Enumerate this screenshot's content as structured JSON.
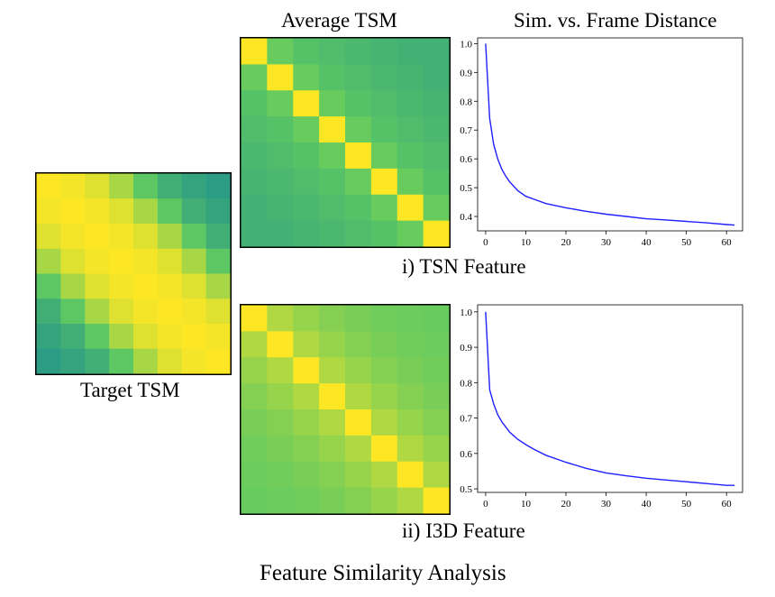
{
  "labels": {
    "avg_tsm": "Average TSM",
    "sim_vs_dist": "Sim. vs. Frame Distance",
    "tsn_caption": "i) TSN Feature",
    "i3d_caption": "ii) I3D Feature",
    "target_caption": "Target TSM",
    "figure_title": "Feature Similarity Analysis"
  },
  "colors": {
    "line": "#2020ff",
    "diag": "#fde725",
    "heat_frame": "#000000"
  },
  "chart_data": [
    {
      "type": "heatmap",
      "title": "Target TSM",
      "size": 8,
      "values": [
        [
          1.0,
          0.98,
          0.93,
          0.8,
          0.62,
          0.45,
          0.38,
          0.33
        ],
        [
          0.98,
          1.0,
          0.98,
          0.93,
          0.8,
          0.62,
          0.45,
          0.38
        ],
        [
          0.93,
          0.98,
          1.0,
          0.98,
          0.93,
          0.8,
          0.62,
          0.45
        ],
        [
          0.8,
          0.93,
          0.98,
          1.0,
          0.98,
          0.93,
          0.8,
          0.62
        ],
        [
          0.62,
          0.8,
          0.93,
          0.98,
          1.0,
          0.98,
          0.93,
          0.8
        ],
        [
          0.45,
          0.62,
          0.8,
          0.93,
          0.98,
          1.0,
          0.98,
          0.93
        ],
        [
          0.38,
          0.45,
          0.62,
          0.8,
          0.93,
          0.98,
          1.0,
          0.98
        ],
        [
          0.33,
          0.38,
          0.45,
          0.62,
          0.8,
          0.93,
          0.98,
          1.0
        ]
      ]
    },
    {
      "type": "heatmap",
      "title": "Average TSM (TSN)",
      "size": 8,
      "values": [
        [
          1.0,
          0.65,
          0.58,
          0.54,
          0.51,
          0.49,
          0.47,
          0.46
        ],
        [
          0.65,
          1.0,
          0.65,
          0.58,
          0.54,
          0.51,
          0.49,
          0.47
        ],
        [
          0.58,
          0.65,
          1.0,
          0.65,
          0.58,
          0.54,
          0.51,
          0.49
        ],
        [
          0.54,
          0.58,
          0.65,
          1.0,
          0.65,
          0.58,
          0.54,
          0.51
        ],
        [
          0.51,
          0.54,
          0.58,
          0.65,
          1.0,
          0.65,
          0.58,
          0.54
        ],
        [
          0.49,
          0.51,
          0.54,
          0.58,
          0.65,
          1.0,
          0.65,
          0.58
        ],
        [
          0.47,
          0.49,
          0.51,
          0.54,
          0.58,
          0.65,
          1.0,
          0.65
        ],
        [
          0.46,
          0.47,
          0.49,
          0.51,
          0.54,
          0.58,
          0.65,
          1.0
        ]
      ]
    },
    {
      "type": "line",
      "title": "Sim. vs. Frame Distance (TSN)",
      "x": [
        0,
        1,
        2,
        3,
        4,
        5,
        6,
        7,
        8,
        10,
        12,
        15,
        20,
        25,
        30,
        35,
        40,
        45,
        50,
        55,
        60,
        62
      ],
      "y": [
        1.0,
        0.74,
        0.65,
        0.6,
        0.565,
        0.54,
        0.52,
        0.505,
        0.49,
        0.47,
        0.46,
        0.445,
        0.43,
        0.418,
        0.408,
        0.4,
        0.392,
        0.388,
        0.383,
        0.378,
        0.372,
        0.37
      ],
      "xlim": [
        -2,
        64
      ],
      "ylim": [
        0.35,
        1.02
      ],
      "xticks": [
        0,
        10,
        20,
        30,
        40,
        50,
        60
      ],
      "yticks": [
        0.4,
        0.5,
        0.6,
        0.7,
        0.8,
        0.9,
        1.0
      ]
    },
    {
      "type": "heatmap",
      "title": "Average TSM (I3D)",
      "size": 8,
      "values": [
        [
          1.0,
          0.82,
          0.76,
          0.72,
          0.69,
          0.67,
          0.66,
          0.65
        ],
        [
          0.82,
          1.0,
          0.82,
          0.76,
          0.72,
          0.69,
          0.67,
          0.66
        ],
        [
          0.76,
          0.82,
          1.0,
          0.82,
          0.76,
          0.72,
          0.69,
          0.67
        ],
        [
          0.72,
          0.76,
          0.82,
          1.0,
          0.82,
          0.76,
          0.72,
          0.69
        ],
        [
          0.69,
          0.72,
          0.76,
          0.82,
          1.0,
          0.82,
          0.76,
          0.72
        ],
        [
          0.67,
          0.69,
          0.72,
          0.76,
          0.82,
          1.0,
          0.82,
          0.76
        ],
        [
          0.66,
          0.67,
          0.69,
          0.72,
          0.76,
          0.82,
          1.0,
          0.82
        ],
        [
          0.65,
          0.66,
          0.67,
          0.69,
          0.72,
          0.76,
          0.82,
          1.0
        ]
      ]
    },
    {
      "type": "line",
      "title": "Sim. vs. Frame Distance (I3D)",
      "x": [
        0,
        1,
        2,
        3,
        4,
        5,
        6,
        7,
        8,
        10,
        12,
        15,
        20,
        25,
        30,
        35,
        40,
        45,
        50,
        55,
        60,
        62
      ],
      "y": [
        1.0,
        0.78,
        0.74,
        0.71,
        0.69,
        0.675,
        0.66,
        0.65,
        0.64,
        0.625,
        0.612,
        0.595,
        0.575,
        0.558,
        0.545,
        0.537,
        0.53,
        0.525,
        0.52,
        0.515,
        0.51,
        0.51
      ],
      "xlim": [
        -2,
        64
      ],
      "ylim": [
        0.49,
        1.02
      ],
      "xticks": [
        0,
        10,
        20,
        30,
        40,
        50,
        60
      ],
      "yticks": [
        0.5,
        0.6,
        0.7,
        0.8,
        0.9,
        1.0
      ]
    }
  ]
}
